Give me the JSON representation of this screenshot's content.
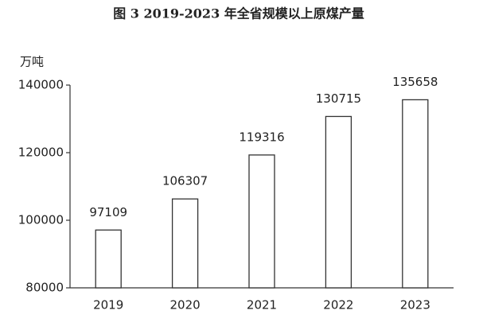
{
  "chart_data": {
    "type": "bar",
    "title": "图 3   2019-2023 年全省规模以上原煤产量",
    "y_label": "万吨",
    "categories": [
      "2019",
      "2020",
      "2021",
      "2022",
      "2023"
    ],
    "values": [
      97109,
      106307,
      119316,
      130715,
      135658
    ],
    "color": "#ffffff",
    "edge_color": "#333333",
    "ylim": [
      80000,
      140000
    ],
    "yticks": [
      80000,
      100000,
      120000,
      140000
    ],
    "grid": false
  }
}
